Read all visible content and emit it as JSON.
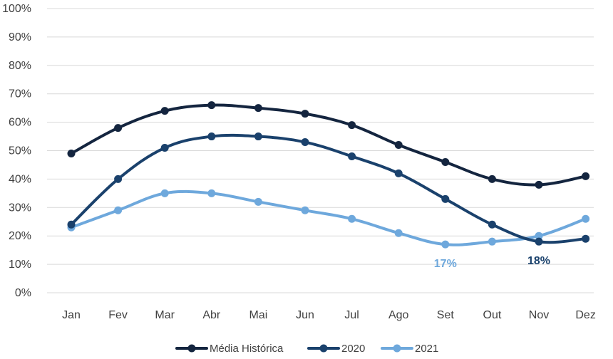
{
  "chart_data": {
    "type": "line",
    "categories": [
      "Jan",
      "Fev",
      "Mar",
      "Abr",
      "Mai",
      "Jun",
      "Jul",
      "Ago",
      "Set",
      "Out",
      "Nov",
      "Dez"
    ],
    "ylim": [
      0,
      100
    ],
    "yticks": [
      "0%",
      "10%",
      "20%",
      "30%",
      "40%",
      "50%",
      "60%",
      "70%",
      "80%",
      "90%",
      "100%"
    ],
    "grid": true,
    "legend_position": "bottom",
    "series": [
      {
        "name": "Média Histórica",
        "color": "#14253f",
        "values": [
          49,
          58,
          64,
          66,
          65,
          63,
          59,
          52,
          46,
          40,
          38,
          41
        ]
      },
      {
        "name": "2020",
        "color": "#1a416c",
        "values": [
          24,
          40,
          51,
          55,
          55,
          53,
          48,
          42,
          33,
          24,
          18,
          19
        ]
      },
      {
        "name": "2021",
        "color": "#6ea8dc",
        "values": [
          23,
          29,
          35,
          35,
          32,
          29,
          26,
          21,
          17,
          18,
          20,
          26
        ]
      }
    ],
    "annotations": [
      {
        "text": "17%",
        "series": 2,
        "category": "Set",
        "color": "#6ea8dc"
      },
      {
        "text": "18%",
        "series": 1,
        "category": "Nov",
        "color": "#1a416c"
      }
    ]
  }
}
